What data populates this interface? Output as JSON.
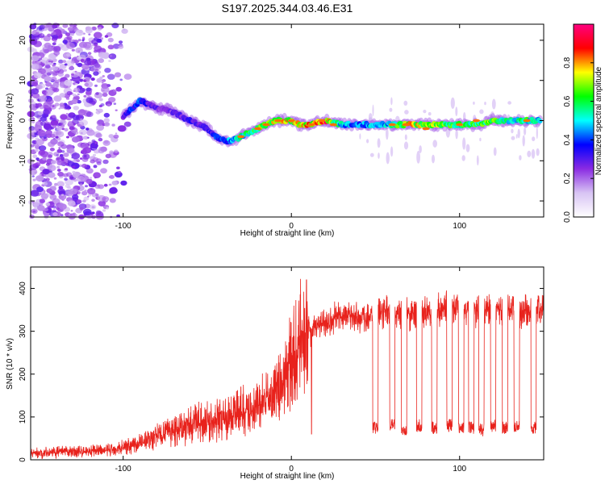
{
  "title": "S197.2025.344.03.46.E31",
  "chart_data": [
    {
      "type": "heatmap",
      "title": "S197.2025.344.03.46.E31",
      "xlabel": "Height of straight line (km)",
      "ylabel": "Frequency (Hz)",
      "xlim": [
        -155,
        150
      ],
      "ylim": [
        -24,
        24
      ],
      "xticks": [
        "-100",
        "0",
        "100"
      ],
      "xtick_values": [
        -100,
        0,
        100
      ],
      "yticks": [
        "-20",
        "-10",
        "0",
        "10",
        "20"
      ],
      "ytick_values": [
        -20,
        -10,
        0,
        10,
        20
      ],
      "colorbar": {
        "label": "Normalized spectral amplitude",
        "range": [
          0,
          1
        ],
        "ticks": [
          "0.0",
          "0.2",
          "0.4",
          "0.6",
          "0.8"
        ],
        "tick_values": [
          0.0,
          0.2,
          0.4,
          0.6,
          0.8
        ],
        "colors": [
          "#ffffff",
          "#d8c4f4",
          "#8a2be2",
          "#0000ff",
          "#00ffff",
          "#00ff00",
          "#ffff00",
          "#ff0000",
          "#ff0080"
        ]
      },
      "ridge": {
        "x": [
          -100,
          -95,
          -90,
          -85,
          -80,
          -75,
          -70,
          -65,
          -60,
          -55,
          -50,
          -45,
          -40,
          -35,
          -30,
          -25,
          -20,
          -15,
          -10,
          -5,
          0,
          5,
          10,
          20,
          30,
          40,
          50,
          60,
          70,
          80,
          90,
          100,
          110,
          120,
          130,
          140,
          148
        ],
        "freq": [
          1,
          3,
          5,
          4,
          3,
          3,
          2,
          1,
          0,
          -1,
          -2,
          -4,
          -5,
          -5,
          -4,
          -3,
          -2,
          -1,
          0,
          0,
          0,
          -1,
          -1,
          0,
          -1,
          -1,
          -1,
          -1,
          -1,
          -1,
          -1,
          -1,
          -1,
          0,
          0,
          0,
          0
        ],
        "amp": [
          0.3,
          0.4,
          0.45,
          0.3,
          0.3,
          0.25,
          0.3,
          0.3,
          0.35,
          0.3,
          0.35,
          0.4,
          0.4,
          0.5,
          0.55,
          0.6,
          0.65,
          0.7,
          0.75,
          0.8,
          0.75,
          0.75,
          0.8,
          0.9,
          0.5,
          0.45,
          0.5,
          0.55,
          0.8,
          0.75,
          0.7,
          0.6,
          0.65,
          0.7,
          0.55,
          0.6,
          0.5
        ]
      }
    },
    {
      "type": "line",
      "xlabel": "Height of straight line (km)",
      "ylabel": "SNR (10 * v/v)",
      "xlim": [
        -155,
        150
      ],
      "ylim": [
        0,
        450
      ],
      "xticks": [
        "-100",
        "0",
        "100"
      ],
      "xtick_values": [
        -100,
        0,
        100
      ],
      "yticks": [
        "0",
        "100",
        "200",
        "300",
        "400"
      ],
      "ytick_values": [
        0,
        100,
        200,
        300,
        400
      ],
      "color": "#e8221c",
      "series": [
        {
          "name": "SNR",
          "x": [
            -155,
            -140,
            -120,
            -110,
            -100,
            -90,
            -80,
            -70,
            -60,
            -50,
            -40,
            -30,
            -20,
            -10,
            -5,
            0,
            5,
            10,
            15,
            20,
            25,
            30,
            35,
            40,
            45,
            50,
            60,
            70,
            80,
            90,
            100,
            110,
            120,
            130,
            140,
            150
          ],
          "y": [
            15,
            18,
            20,
            22,
            30,
            40,
            55,
            70,
            80,
            90,
            95,
            110,
            125,
            150,
            180,
            230,
            270,
            300,
            310,
            320,
            330,
            335,
            340,
            330,
            335,
            340,
            345,
            340,
            350,
            355,
            350,
            345,
            350,
            350,
            345,
            350
          ]
        }
      ],
      "drops": {
        "x": [
          50,
          60,
          67,
          76,
          85,
          94,
          101,
          107,
          113,
          120,
          127,
          134,
          144
        ],
        "y": [
          75,
          80,
          70,
          80,
          75,
          80,
          75,
          75,
          70,
          80,
          75,
          80,
          75
        ]
      },
      "spikes": {
        "x": [
          -30,
          9,
          11,
          12
        ],
        "y": [
          170,
          420,
          310,
          60
        ]
      }
    }
  ]
}
